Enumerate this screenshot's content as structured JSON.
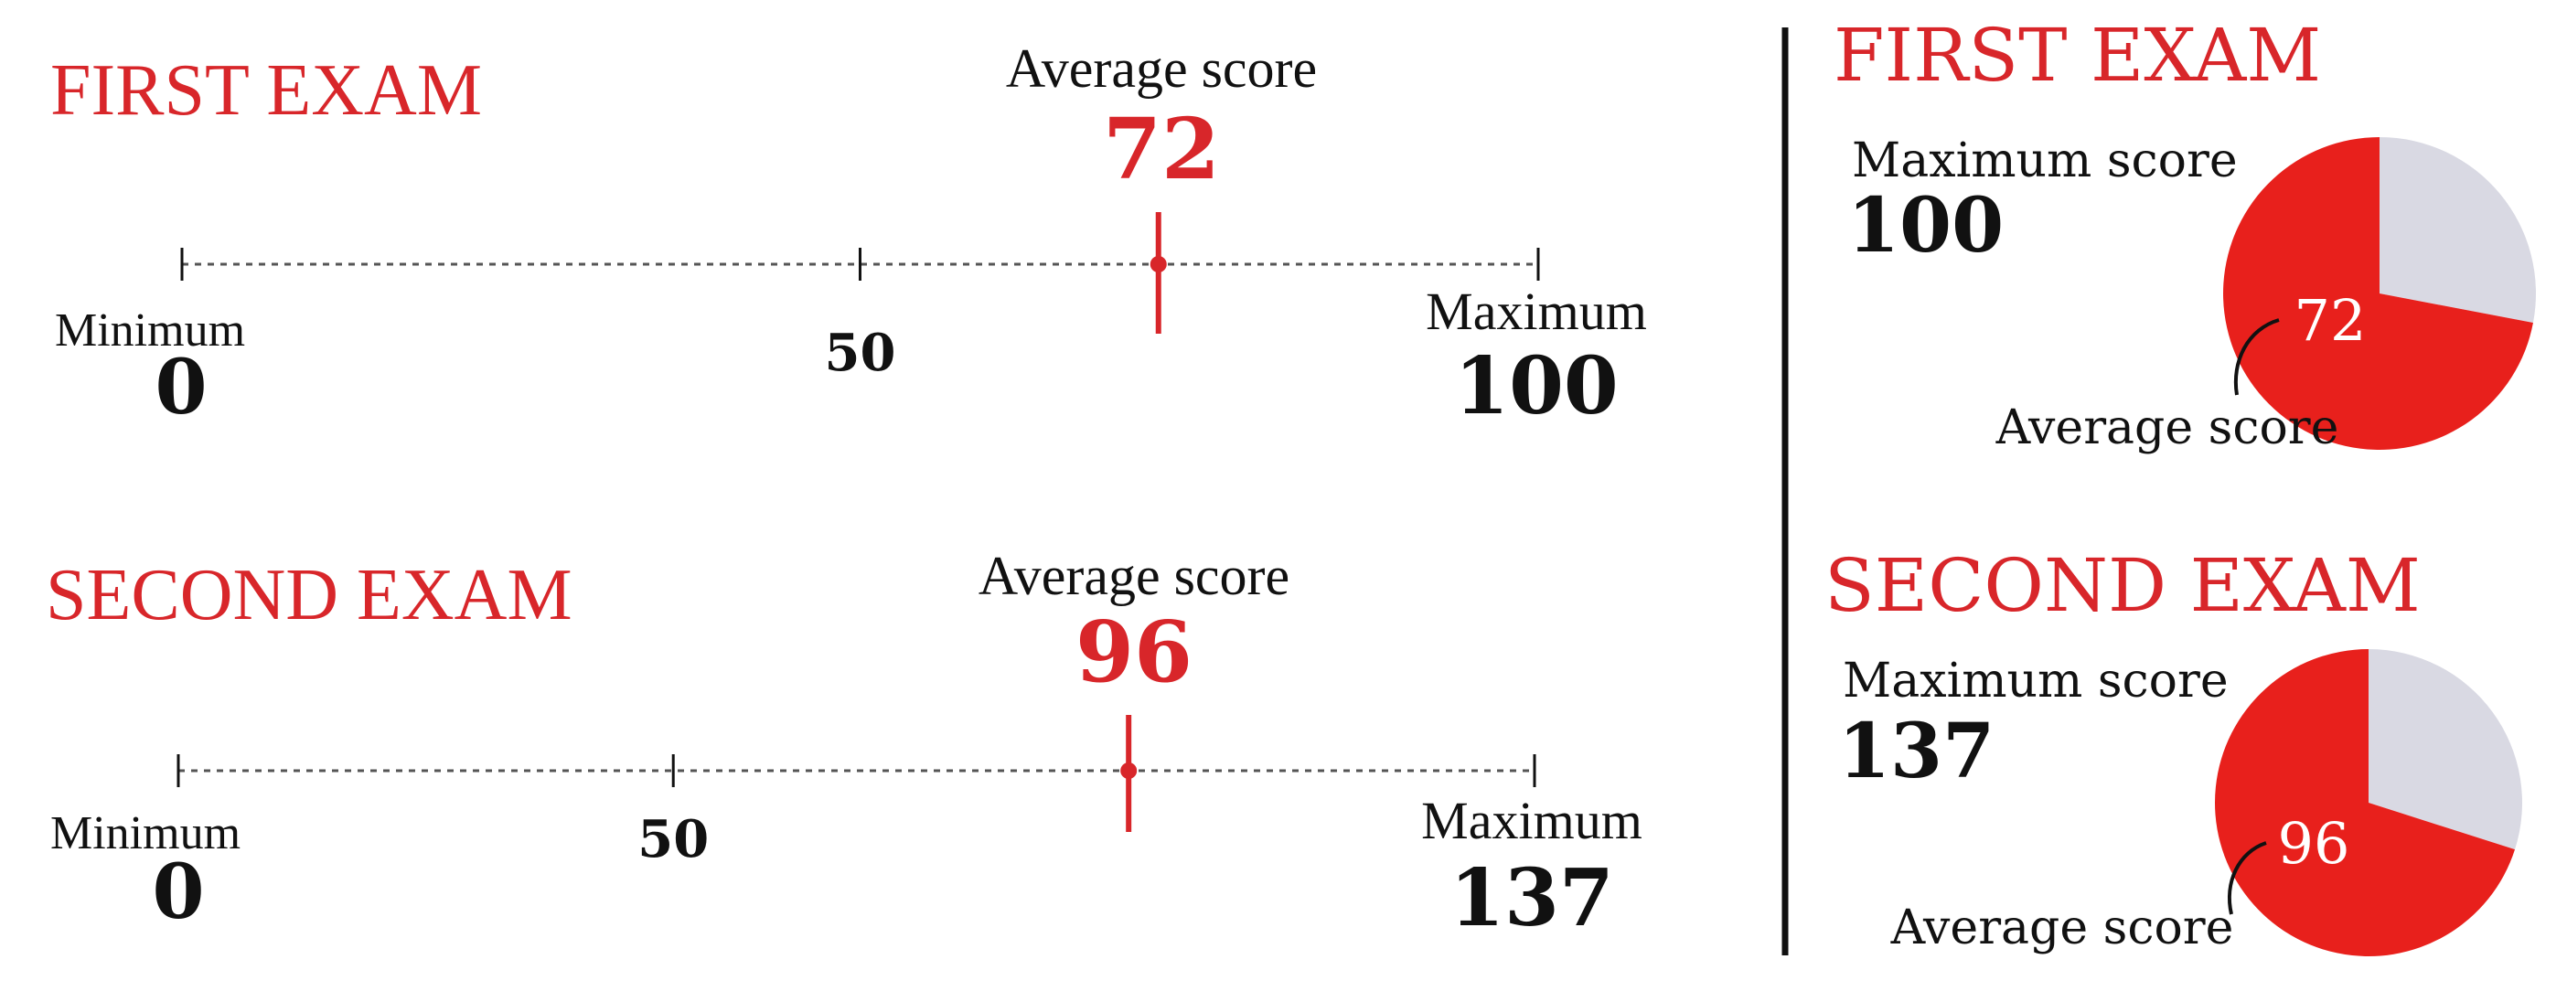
{
  "colors": {
    "accent": "#d8262a",
    "pie_fill": "#e8201c",
    "pie_rest": "#d9d9e3",
    "text": "#111111"
  },
  "chart_data": [
    {
      "type": "number-line",
      "title": "FIRST EXAM",
      "average_label": "Average score",
      "average": 72,
      "min_label": "Minimum",
      "min": 0,
      "mid_tick": 50,
      "max_label": "Maximum",
      "max": 100,
      "xlim": [
        0,
        100
      ]
    },
    {
      "type": "number-line",
      "title": "SECOND EXAM",
      "average_label": "Average score",
      "average": 96,
      "min_label": "Minimum",
      "min": 0,
      "mid_tick": 50,
      "max_label": "Maximum",
      "max": 137,
      "xlim": [
        0,
        137
      ]
    },
    {
      "type": "pie",
      "title": "FIRST EXAM",
      "max_label": "Maximum score",
      "max": 100,
      "average_label": "Average score",
      "average": 72
    },
    {
      "type": "pie",
      "title": "SECOND EXAM",
      "max_label": "Maximum score",
      "max": 137,
      "average_label": "Average score",
      "average": 96
    }
  ]
}
